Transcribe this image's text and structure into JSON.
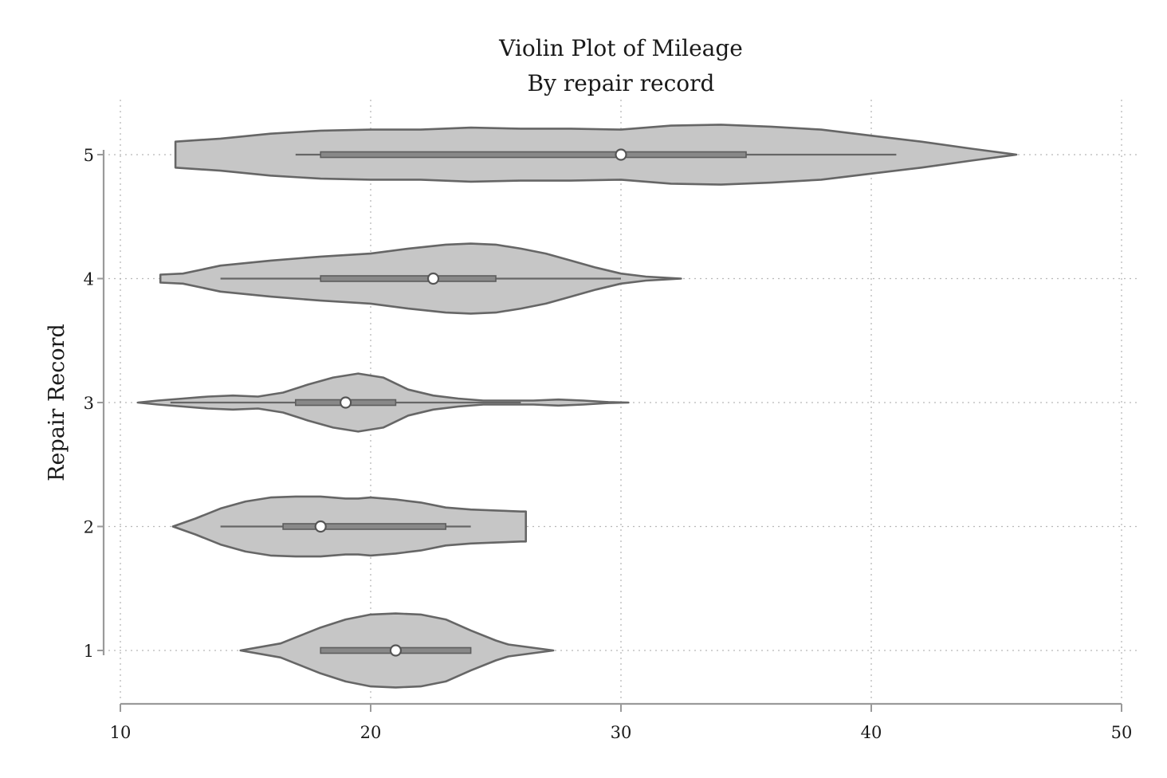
{
  "chart_data": {
    "type": "violin",
    "orientation": "horizontal",
    "title": "Violin Plot of Mileage",
    "subtitle": "By repair record",
    "xlabel": "",
    "ylabel": "Repair Record",
    "xlim": [
      10,
      50
    ],
    "ylim": [
      0.57,
      5.43
    ],
    "x_ticks": [
      10,
      20,
      30,
      40,
      50
    ],
    "y_ticks": [
      1,
      2,
      3,
      4,
      5
    ],
    "grid": true,
    "colors": {
      "fill": "#c6c6c6",
      "outline": "#666666",
      "median_marker": "#ffffff"
    },
    "groups": [
      {
        "category": 1,
        "min": 18,
        "q1": 18,
        "median": 21,
        "q3": 24,
        "max": 24,
        "density": [
          [
            14.8,
            0.0
          ],
          [
            16.4,
            0.07
          ],
          [
            17.0,
            0.13
          ],
          [
            18.0,
            0.23
          ],
          [
            19.0,
            0.31
          ],
          [
            20.0,
            0.36
          ],
          [
            21.0,
            0.37
          ],
          [
            22.0,
            0.36
          ],
          [
            23.0,
            0.31
          ],
          [
            24.0,
            0.2
          ],
          [
            25.0,
            0.1
          ],
          [
            25.5,
            0.06
          ],
          [
            27.3,
            0.0
          ]
        ]
      },
      {
        "category": 2,
        "min": 14,
        "q1": 16.5,
        "median": 18,
        "q3": 23,
        "max": 24,
        "density": [
          [
            12.1,
            0.0
          ],
          [
            13.0,
            0.08
          ],
          [
            14.0,
            0.18
          ],
          [
            15.0,
            0.25
          ],
          [
            16.0,
            0.29
          ],
          [
            17.0,
            0.3
          ],
          [
            18.0,
            0.3
          ],
          [
            19.0,
            0.28
          ],
          [
            19.5,
            0.28
          ],
          [
            20.0,
            0.29
          ],
          [
            21.0,
            0.27
          ],
          [
            22.0,
            0.24
          ],
          [
            23.0,
            0.19
          ],
          [
            24.0,
            0.17
          ],
          [
            25.0,
            0.16
          ],
          [
            26.0,
            0.15
          ],
          [
            26.2,
            0.15
          ],
          [
            26.2,
            0.0
          ]
        ]
      },
      {
        "category": 3,
        "min": 12,
        "q1": 17,
        "median": 19,
        "q3": 21,
        "max": 26,
        "density": [
          [
            10.7,
            0.0
          ],
          [
            11.5,
            0.02
          ],
          [
            12.5,
            0.04
          ],
          [
            13.5,
            0.06
          ],
          [
            14.5,
            0.07
          ],
          [
            15.5,
            0.06
          ],
          [
            16.5,
            0.1
          ],
          [
            17.5,
            0.18
          ],
          [
            18.5,
            0.25
          ],
          [
            19.5,
            0.29
          ],
          [
            20.5,
            0.25
          ],
          [
            21.5,
            0.13
          ],
          [
            22.5,
            0.07
          ],
          [
            23.5,
            0.04
          ],
          [
            24.5,
            0.02
          ],
          [
            25.5,
            0.02
          ],
          [
            26.5,
            0.02
          ],
          [
            27.5,
            0.03
          ],
          [
            28.5,
            0.02
          ],
          [
            29.5,
            0.005
          ],
          [
            30.3,
            0.0
          ]
        ]
      },
      {
        "category": 4,
        "min": 14,
        "q1": 18,
        "median": 22.5,
        "q3": 25,
        "max": 30,
        "density": [
          [
            11.6,
            0.0
          ],
          [
            11.6,
            0.04
          ],
          [
            12.5,
            0.05
          ],
          [
            14.0,
            0.13
          ],
          [
            16.0,
            0.18
          ],
          [
            18.0,
            0.22
          ],
          [
            20.0,
            0.25
          ],
          [
            21.5,
            0.3
          ],
          [
            23.0,
            0.34
          ],
          [
            24.0,
            0.35
          ],
          [
            25.0,
            0.34
          ],
          [
            26.0,
            0.3
          ],
          [
            27.0,
            0.25
          ],
          [
            28.0,
            0.18
          ],
          [
            29.0,
            0.11
          ],
          [
            30.0,
            0.05
          ],
          [
            31.0,
            0.02
          ],
          [
            32.4,
            0.0
          ]
        ]
      },
      {
        "category": 5,
        "min": 17,
        "q1": 18,
        "median": 30,
        "q3": 35,
        "max": 41,
        "density": [
          [
            12.2,
            0.13
          ],
          [
            14.0,
            0.16
          ],
          [
            16.0,
            0.21
          ],
          [
            18.0,
            0.24
          ],
          [
            20.0,
            0.25
          ],
          [
            22.0,
            0.25
          ],
          [
            24.0,
            0.27
          ],
          [
            26.0,
            0.26
          ],
          [
            28.0,
            0.26
          ],
          [
            30.0,
            0.25
          ],
          [
            32.0,
            0.29
          ],
          [
            34.0,
            0.3
          ],
          [
            36.0,
            0.28
          ],
          [
            38.0,
            0.25
          ],
          [
            40.0,
            0.19
          ],
          [
            42.0,
            0.13
          ],
          [
            44.0,
            0.06
          ],
          [
            45.8,
            0.0
          ]
        ]
      }
    ]
  }
}
